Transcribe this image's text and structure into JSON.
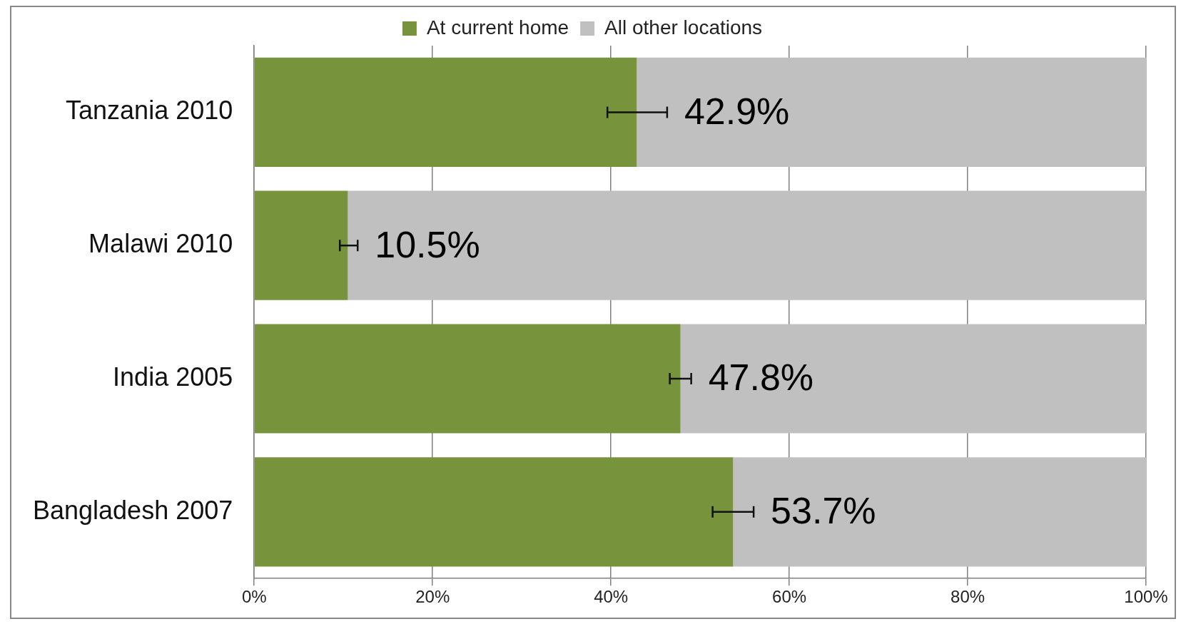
{
  "chart_data": {
    "type": "bar",
    "orientation": "horizontal",
    "stacked": true,
    "categories": [
      "Tanzania 2010",
      "Malawi 2010",
      "India 2005",
      "Bangladesh 2007"
    ],
    "series": [
      {
        "name": "At current home",
        "color": "#77933c",
        "values": [
          42.9,
          10.5,
          47.8,
          53.7
        ],
        "errors": [
          [
            39.6,
            46.3
          ],
          [
            9.6,
            11.6
          ],
          [
            46.6,
            49.0
          ],
          [
            51.4,
            56.0
          ]
        ],
        "value_labels": [
          "42.9%",
          "10.5%",
          "47.8%",
          "53.7%"
        ]
      },
      {
        "name": "All other locations",
        "color": "#c0c0c0",
        "values": [
          57.1,
          89.5,
          52.2,
          46.3
        ]
      }
    ],
    "xlim": [
      0,
      100
    ],
    "xticks": [
      {
        "value": 0,
        "label": "0%"
      },
      {
        "value": 20,
        "label": "20%"
      },
      {
        "value": 40,
        "label": "40%"
      },
      {
        "value": 60,
        "label": "60%"
      },
      {
        "value": 80,
        "label": "80%"
      },
      {
        "value": 100,
        "label": "100%"
      }
    ],
    "grid": "x",
    "legend": "top"
  }
}
